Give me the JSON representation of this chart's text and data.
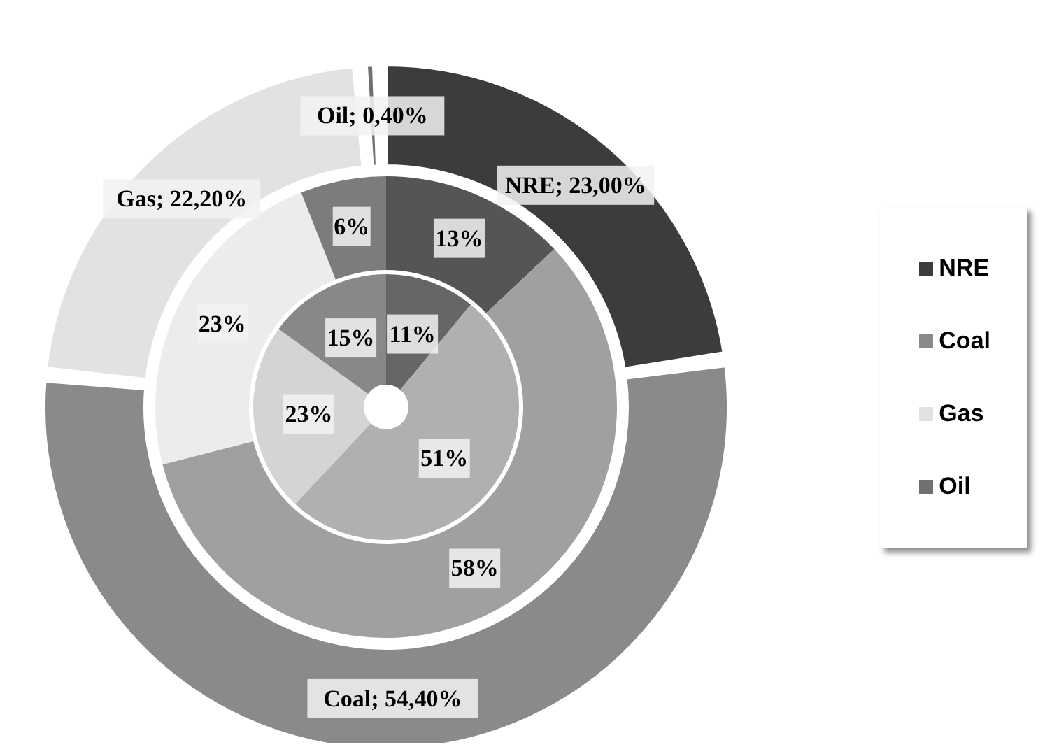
{
  "chart_data": {
    "type": "donut",
    "categories": [
      "NRE",
      "Coal",
      "Gas",
      "Oil"
    ],
    "series": [
      {
        "values": [
          23.0,
          54.4,
          22.2,
          0.4
        ],
        "colors": [
          "#3c3c3c",
          "#8a8a8a",
          "#e2e2e2",
          "#707070"
        ],
        "value_labels": [
          "NRE; 23,00%",
          "Coal; 54,40%",
          "Gas; 22,20%",
          "Oil; 0,40%"
        ]
      },
      {
        "values": [
          13,
          58,
          23,
          6
        ],
        "colors": [
          "#555555",
          "#a0a0a0",
          "#ececec",
          "#7c7c7c"
        ],
        "value_labels": [
          "13%",
          "58%",
          "23%",
          "6%"
        ]
      },
      {
        "values": [
          11,
          51,
          23,
          15
        ],
        "colors": [
          "#666666",
          "#b0b0b0",
          "#d4d4d4",
          "#888888"
        ],
        "value_labels": [
          "11%",
          "51%",
          "23%",
          "15%"
        ]
      }
    ],
    "legend": "right"
  }
}
